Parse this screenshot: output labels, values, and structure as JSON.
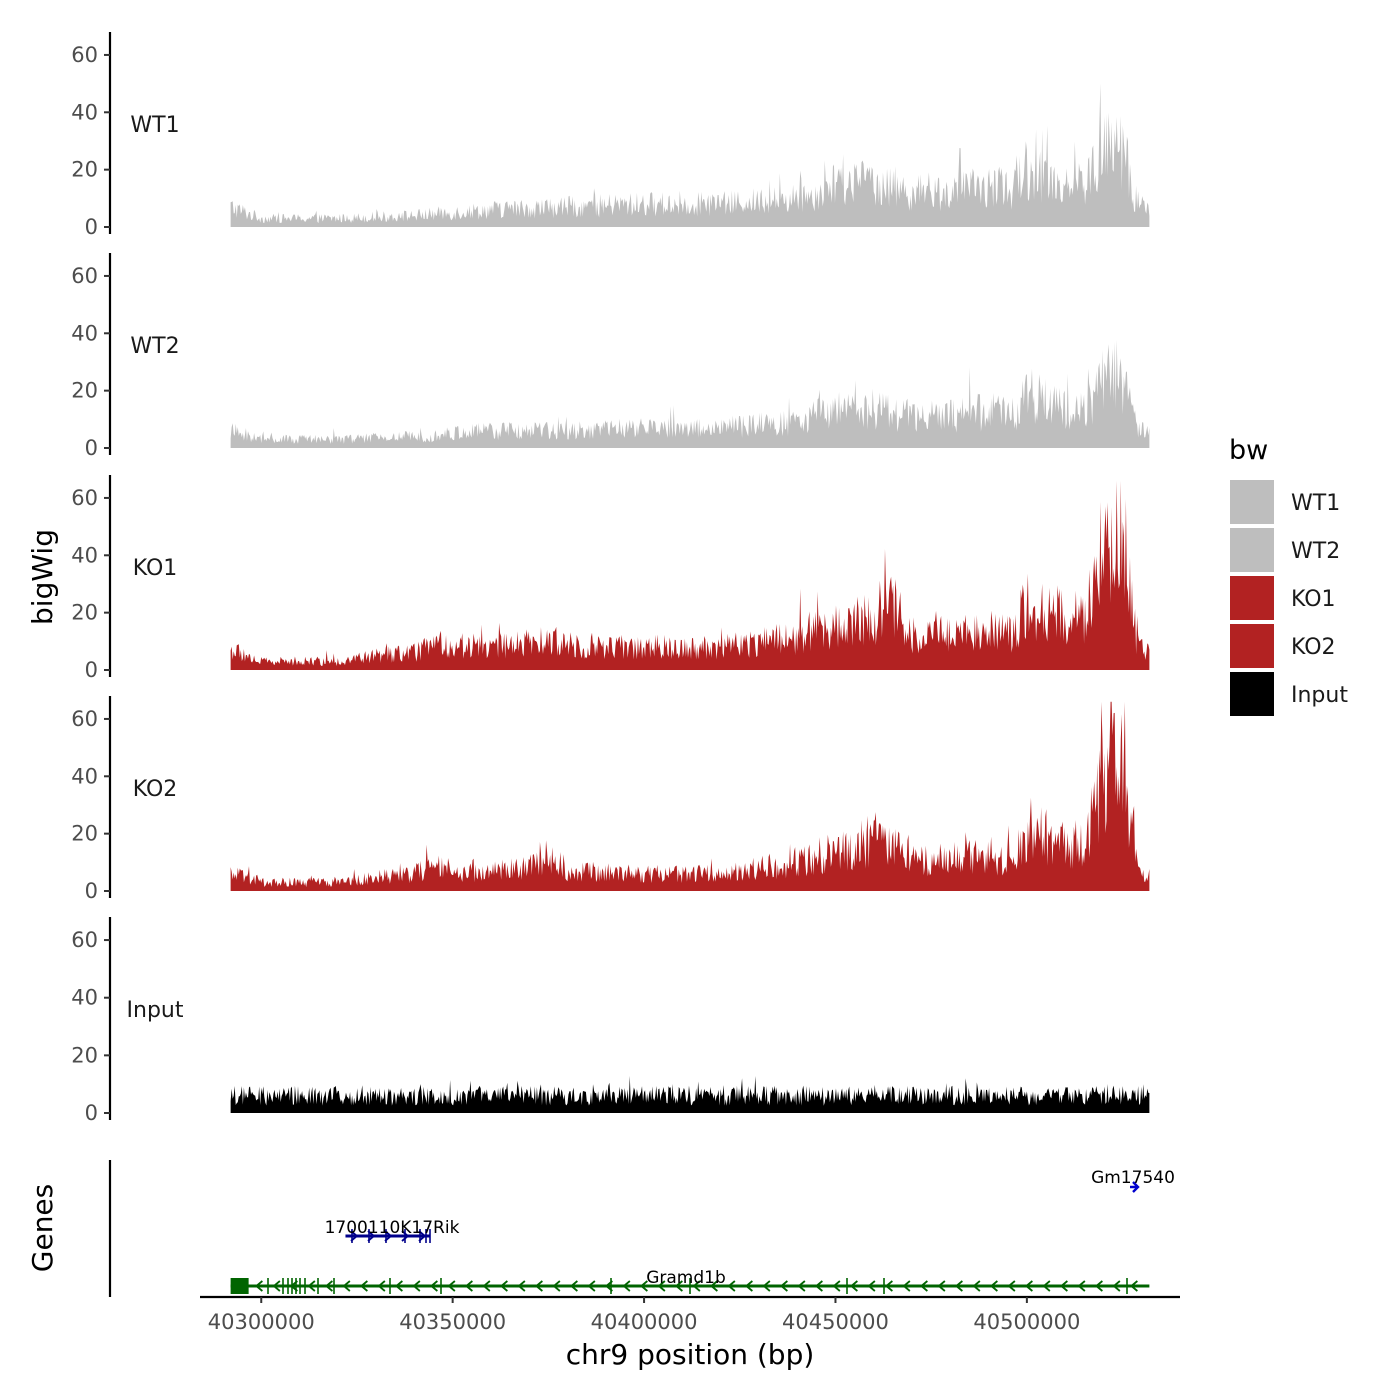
{
  "chart_data": {
    "type": "area",
    "xlabel": "chr9 position (bp)",
    "ylabel": "bigWig",
    "genes_label": "Genes",
    "xlim": [
      40284000,
      40540000
    ],
    "ylim": [
      0,
      68
    ],
    "x_ticks": [
      40300000,
      40350000,
      40400000,
      40450000,
      40500000
    ],
    "x_tick_labels": [
      "40300000",
      "40350000",
      "40400000",
      "40450000",
      "40500000"
    ],
    "y_ticks": [
      0,
      20,
      40,
      60
    ],
    "y_tick_labels": [
      "0",
      "20",
      "40",
      "60"
    ],
    "data_range": [
      40292000,
      40532000
    ],
    "legend": {
      "title": "bw",
      "entries": [
        {
          "label": "WT1",
          "color": "#bebebe"
        },
        {
          "label": "WT2",
          "color": "#bebebe"
        },
        {
          "label": "KO1",
          "color": "#b22222"
        },
        {
          "label": "KO2",
          "color": "#b22222"
        },
        {
          "label": "Input",
          "color": "#000000"
        }
      ]
    },
    "series": [
      {
        "name": "WT1",
        "color": "#bebebe",
        "profile": [
          [
            40292000,
            7
          ],
          [
            40300000,
            3
          ],
          [
            40320000,
            3
          ],
          [
            40340000,
            4
          ],
          [
            40360000,
            6
          ],
          [
            40380000,
            7
          ],
          [
            40400000,
            8
          ],
          [
            40420000,
            8
          ],
          [
            40440000,
            10
          ],
          [
            40450000,
            14
          ],
          [
            40460000,
            16
          ],
          [
            40470000,
            12
          ],
          [
            40480000,
            12
          ],
          [
            40490000,
            14
          ],
          [
            40497000,
            13
          ],
          [
            40499000,
            21
          ],
          [
            40505000,
            17
          ],
          [
            40515000,
            14
          ],
          [
            40520000,
            26
          ],
          [
            40525000,
            28
          ],
          [
            40528000,
            10
          ],
          [
            40532000,
            6
          ]
        ]
      },
      {
        "name": "WT2",
        "color": "#bebebe",
        "profile": [
          [
            40292000,
            6
          ],
          [
            40300000,
            3
          ],
          [
            40320000,
            3
          ],
          [
            40340000,
            4
          ],
          [
            40360000,
            6
          ],
          [
            40380000,
            6
          ],
          [
            40400000,
            7
          ],
          [
            40420000,
            7
          ],
          [
            40440000,
            9
          ],
          [
            40450000,
            13
          ],
          [
            40460000,
            14
          ],
          [
            40470000,
            11
          ],
          [
            40480000,
            11
          ],
          [
            40490000,
            13
          ],
          [
            40497000,
            12
          ],
          [
            40499000,
            19
          ],
          [
            40505000,
            16
          ],
          [
            40515000,
            13
          ],
          [
            40520000,
            24
          ],
          [
            40525000,
            26
          ],
          [
            40528000,
            9
          ],
          [
            40532000,
            5
          ]
        ]
      },
      {
        "name": "KO1",
        "color": "#b22222",
        "profile": [
          [
            40292000,
            7
          ],
          [
            40300000,
            3
          ],
          [
            40320000,
            3
          ],
          [
            40330000,
            5
          ],
          [
            40340000,
            6
          ],
          [
            40345000,
            9
          ],
          [
            40360000,
            8
          ],
          [
            40375000,
            10
          ],
          [
            40390000,
            8
          ],
          [
            40400000,
            8
          ],
          [
            40420000,
            8
          ],
          [
            40440000,
            12
          ],
          [
            40450000,
            16
          ],
          [
            40460000,
            18
          ],
          [
            40465000,
            22
          ],
          [
            40470000,
            12
          ],
          [
            40480000,
            13
          ],
          [
            40490000,
            14
          ],
          [
            40497000,
            12
          ],
          [
            40499000,
            24
          ],
          [
            40505000,
            20
          ],
          [
            40515000,
            18
          ],
          [
            40520000,
            38
          ],
          [
            40525000,
            52
          ],
          [
            40527000,
            25
          ],
          [
            40529000,
            8
          ],
          [
            40532000,
            6
          ]
        ]
      },
      {
        "name": "KO2",
        "color": "#b22222",
        "profile": [
          [
            40292000,
            6
          ],
          [
            40300000,
            3
          ],
          [
            40320000,
            3
          ],
          [
            40330000,
            5
          ],
          [
            40340000,
            6
          ],
          [
            40345000,
            9
          ],
          [
            40350000,
            6
          ],
          [
            40370000,
            8
          ],
          [
            40375000,
            13
          ],
          [
            40380000,
            7
          ],
          [
            40400000,
            6
          ],
          [
            40420000,
            6
          ],
          [
            40440000,
            10
          ],
          [
            40450000,
            14
          ],
          [
            40460000,
            18
          ],
          [
            40465000,
            16
          ],
          [
            40470000,
            10
          ],
          [
            40480000,
            11
          ],
          [
            40490000,
            12
          ],
          [
            40497000,
            11
          ],
          [
            40499000,
            20
          ],
          [
            40505000,
            17
          ],
          [
            40515000,
            16
          ],
          [
            40520000,
            38
          ],
          [
            40525000,
            58
          ],
          [
            40527000,
            25
          ],
          [
            40529000,
            6
          ],
          [
            40532000,
            5
          ]
        ]
      },
      {
        "name": "Input",
        "color": "#000000",
        "profile": [
          [
            40292000,
            6
          ],
          [
            40532000,
            6
          ]
        ]
      }
    ],
    "genes": [
      {
        "name": "1700110K17Rik",
        "start": 40322000,
        "end": 40344000,
        "strand": "+",
        "color": "#00008b"
      },
      {
        "name": "Gm17540",
        "start": 40532000,
        "end": 40533500,
        "strand": "+",
        "color": "#0000cd"
      },
      {
        "name": "Gramd1b",
        "start": 40292000,
        "end": 40532000,
        "strand": "-",
        "color": "#006400"
      }
    ]
  }
}
